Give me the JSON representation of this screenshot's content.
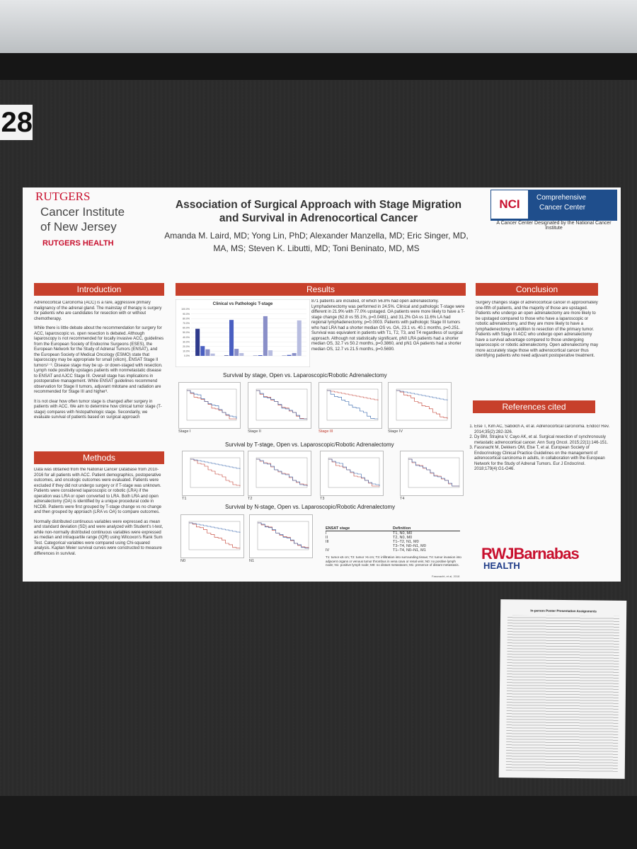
{
  "board_card": {
    "number": "28"
  },
  "header": {
    "institution": {
      "name": "RUTGERS",
      "line1": "Cancer Institute",
      "line2": "of New Jersey",
      "health": "RUTGERS HEALTH"
    },
    "title": "Association of Surgical Approach with Stage Migration and Survival in Adrenocortical Cancer",
    "authors": "Amanda M. Laird, MD; Yong Lin, PhD; Alexander Manzella, MD; Eric Singer, MD, MA, MS; Steven K. Libutti, MD; Toni Beninato, MD, MS",
    "nci": {
      "badge": "NCI",
      "line1": "Comprehensive",
      "line2": "Cancer Center",
      "caption": "A Cancer Center Designated by the National Cancer Institute"
    }
  },
  "introduction": {
    "heading": "Introduction",
    "paragraphs": [
      "Adrenocortical Carcinoma (ACC) is a rare, aggressive primary malignancy of the adrenal gland.  The mainstay of therapy is surgery for patients who are candidates for resection with or without chemotherapy.",
      "While there is little debate about the recommendation for surgery for ACC, laparoscopic vs. open resection is debated. Although laparoscopy is not recommended for locally invasive ACC, guidelines from the European Society of Endocrine Surgeons (ESES), the European Network for the Study of Adrenal Tumors (ENSAT), and the European Society of Medical Oncology (ESMO) state that laparoscopy may be appropriate for small (≤6cm), ENSAT Stage II tumors¹⁻³.  Disease stage may be up- or down-staged with resection.  Lymph node positivity upstages patients with nonmetastatic disease to ENSAT and AJCC Stage III.  Overall stage has implications in postoperative management.  While ENSAT guidelines recommend observation for Stage II tumors, adjuvant mitotane and radiation are recommended for Stage III and higher³.",
      "It is not clear how often tumor stage is changed after surgery in patients with ACC.  We aim to determine how clinical tumor stage (T-stage) compares with histopathologic stage.  Secondarily, we evaluate survival of patients based on surgical approach"
    ]
  },
  "methods": {
    "heading": "Methods",
    "paragraphs": [
      "Data was obtained from the National Cancer Database from 2010-2016 for all patients with ACC.  Patient demographics, postoperative outcomes, and  oncologic outcomes were evaluated.  Patients were excluded if they did not undergo surgery or if T-stage was unknown.  Patients were considered laparoscopic or robotic (LRA) if the operation was LRA or open converted to LRA.  Both LRA and open adrenalectomy (OA) is identified by a unique procedural code in NCDB.  Patients were first grouped by T-stage change vs no change and then grouped by approach (LRA vs OA) to compare outcomes.",
      "Normally distributed continuous variables were expressed as mean and standard deviation (SD) and were analyzed with Student's t-test, while non-normally distributed continuous variables were expressed as median and intraquartile range (IQR) using Wilcoxon's Rank Sum Test.  Categorical variables were compared using Chi-squared analysis.  Kaplan Meier survival curves were constructed to measure differences in survival."
    ]
  },
  "results": {
    "heading": "Results",
    "text": "871 patients are included, of which 56.8% had open adrenalectomy.  Lymphadenectomy was performed in 24.5%.  Clinical and pathologic T-stage were different in 21.9% with 77.0% upstaged.  OA patients were more likely to have a T-stage change (62.8 vs 55.1%, p=0.0481), and 31.2% OA vs 11.6% LA had regional lymphadenectomy, p=0.0003.  Patients with pathologic Stage III  tumors who had LRA had a shorter median OS vs. OA, 23.1 vs. 40.1 months, p=0.251.  Survival was equivalent in patients with T1, T2, T3, and T4 regardless of surgical approach.  Although not statistically significant, pN0 LRA patients had a shorter median OS, 32.7 vs 50.2 months, p=0.3860, and pN1 OA patients had a shorter median OS, 12.7 vs 21.5 months, p=0.5690.",
    "chart": {
      "type": "bar",
      "title": "Clinical vs Pathologic T-stage",
      "ylim": [
        0,
        100
      ],
      "yticks": [
        {
          "value": 0,
          "label": "0.0%"
        },
        {
          "value": 10,
          "label": "10.0%"
        },
        {
          "value": 20,
          "label": "20.0%"
        },
        {
          "value": 30,
          "label": "30.0%"
        },
        {
          "value": 40,
          "label": "40.0%"
        },
        {
          "value": 50,
          "label": "50.0%"
        },
        {
          "value": 60,
          "label": "60.0%"
        },
        {
          "value": 70,
          "label": "70.0%"
        },
        {
          "value": 80,
          "label": "80.0%"
        },
        {
          "value": 90,
          "label": "90.0%"
        },
        {
          "value": 100,
          "label": "100.0%"
        }
      ],
      "series": [
        {
          "color": "#2e3a8c",
          "values": [
            58,
            1,
            0.5,
            0.5
          ]
        },
        {
          "color": "#4a5fc1",
          "values": [
            21,
            77,
            1.5,
            2
          ]
        },
        {
          "color": "#8a8fc8",
          "values": [
            14,
            15,
            85,
            6
          ]
        },
        {
          "color": "#b8bde0",
          "values": [
            5,
            6,
            12,
            76
          ]
        }
      ]
    },
    "stage_plots": {
      "caption": "Survival by stage, Open vs. Laparoscopic/Robotic Adrenalectomy",
      "labels": [
        "Stage I",
        "Stage II",
        "Stage III",
        "Stage IV"
      ]
    },
    "t_plots": {
      "caption": "Survival by T-stage, Open vs. Laparoscopic/Robotic Adrenalectomy",
      "labels": [
        "T1",
        "T2",
        "T3",
        "T4"
      ]
    },
    "n_plots": {
      "caption": "Survival by N-stage, Open vs. Laparoscopic/Robotic Adrenalectomy",
      "labels": [
        "N0",
        "N1"
      ]
    },
    "ensat": {
      "headers": [
        "ENSAT stage",
        "Definition"
      ],
      "rows": [
        {
          "stage": "I",
          "definitions": [
            "T1, N0, M0"
          ]
        },
        {
          "stage": "II",
          "definitions": [
            "T2, N0, M0"
          ]
        },
        {
          "stage": "III",
          "definitions": [
            "T1–T2, N1, M0",
            "T3–T4, N0–N1, M0"
          ]
        },
        {
          "stage": "IV",
          "definitions": [
            "T1–T4, N0–N1, M1"
          ]
        }
      ],
      "footnote": "T1: tumor ≤5 cm; T2: tumor >5 cm; T3: infiltration into surrounding tissue; T4: tumor invasion into adjacent organs or venous tumor thrombus in vena cava or renal vein; N0: no positive lymph node; N1: positive lymph node; M0: no distant metastases; M1: presence of distant metastasis.",
      "source": "Fassnacht, et al, 2018"
    }
  },
  "conclusion": {
    "heading": "Conclusion",
    "text": "Surgery changes stage of adrenocortical cancer in approximately one-fifth of patients, and the majority of those are upstaged.  Patients who undergo an open adrenalectomy are more likely to be upstaged compared to those who have a laparoscopic or robotic adrenalectomy, and they are more likely to have a lymphadenectomy in addition to resection of the primary tumor.  Patients with Stage III ACC who undergo open adrenalectomy have a survival advantage compared to those undergoing laparoscopic or robotic adrenalectomy.  Open adrenalectomy may more accurately stage those with adrenocortical cancer thus identifying patients who need adjuvant postoperative treatment."
  },
  "references": {
    "heading": "References cited",
    "items": [
      "Else T, Kim AC, Sabolch A, et al. Adrenocortical carcinoma. Endocr Rev. 2014;35(2):282-326.",
      "Dy BM, Strajina V, Cayo AK, et al. Surgical resection of synchronously metastatic adrenocortical cancer. Ann Surg Oncol. 2015;22(1):146-151.",
      "Fassnacht M, Dekkers OM, Else T, et al. European Society of Endocrinology Clinical Practice Guidelines on the management of adrenocortical carcinoma in adults, in collaboration with the European Network for the Study of Adrenal Tumors. Eur J Endocrinol. 2018;179(4):G1-G46."
    ]
  },
  "footer_logo": {
    "brand": "RWJBarnabas",
    "health": "HEALTH"
  },
  "assignment_sheet": {
    "title": "In-person Poster Presentation Assignments"
  }
}
